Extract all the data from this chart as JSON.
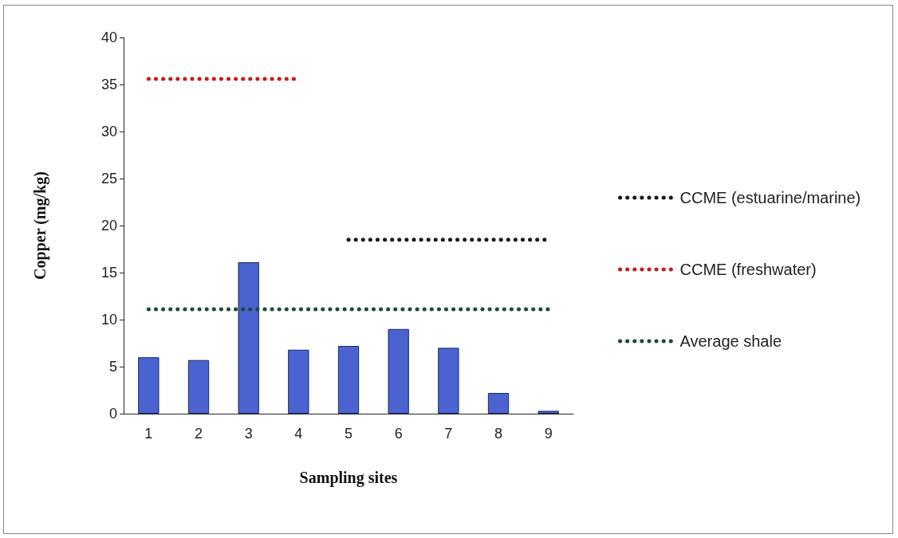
{
  "chart_data": {
    "type": "bar",
    "xlabel": "Sampling sites",
    "ylabel": "Copper (mg/kg)",
    "categories": [
      "1",
      "2",
      "3",
      "4",
      "5",
      "6",
      "7",
      "8",
      "9"
    ],
    "ylim": [
      0,
      40
    ],
    "yticks": [
      0,
      5,
      10,
      15,
      20,
      25,
      30,
      35,
      40
    ],
    "grid": false,
    "legend": "right",
    "marker": "none",
    "series": [
      {
        "color": "#4a63d0",
        "values": [
          6.0,
          5.7,
          16.1,
          6.8,
          7.2,
          9.0,
          7.0,
          2.2,
          0.3
        ]
      },
      {
        "type": "line",
        "name": "CCME (estuarine/marine)",
        "color": "#1a1a1a",
        "line_style": "dotted",
        "x": [
          "5",
          "6",
          "7",
          "8",
          "9"
        ],
        "values": [
          18.5,
          18.5,
          18.5,
          18.5,
          18.5
        ]
      },
      {
        "type": "line",
        "name": "CCME (freshwater)",
        "color": "#c0201c",
        "line_style": "dotted",
        "x": [
          "1",
          "2",
          "3",
          "4"
        ],
        "values": [
          35.6,
          35.6,
          35.6,
          35.6
        ]
      },
      {
        "type": "line",
        "name": "Average shale",
        "color": "#1f4a3c",
        "line_style": "dotted",
        "x": [
          "1",
          "2",
          "3",
          "4",
          "5",
          "6",
          "7",
          "8",
          "9"
        ],
        "values": [
          11.1,
          11.1,
          11.1,
          11.1,
          11.1,
          11.1,
          11.1,
          11.1,
          11.1
        ]
      }
    ]
  }
}
